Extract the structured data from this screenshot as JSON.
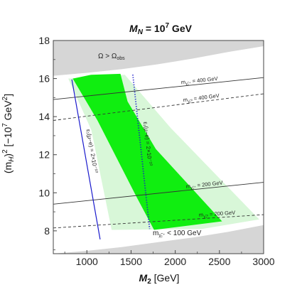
{
  "chart_data": {
    "type": "area",
    "title_main": "M",
    "title_sub": "N",
    "title_rest": " = 10",
    "title_exp": "7",
    "title_unit": " GeV",
    "xlabel_main": "M",
    "xlabel_sub": "2",
    "xlabel_rest": " [GeV]",
    "ylabel": "(m_H)^2 [-10^7 GeV^2]",
    "ylabel_parts": {
      "a": "(m",
      "b": "H",
      "c": ")",
      "d": "2",
      "e": " [−10",
      "f": "7",
      "g": " GeV",
      "h": "2",
      "i": "]"
    },
    "xlim": [
      620,
      3000
    ],
    "ylim": [
      6.8,
      18
    ],
    "x_ticks": [
      1000,
      1500,
      2000,
      2500,
      3000
    ],
    "x_tick_labels": [
      "1000",
      "1500",
      "2000",
      "2500",
      "3000"
    ],
    "y_ticks": [
      8,
      10,
      12,
      14,
      16,
      18
    ],
    "y_tick_labels": [
      "8",
      "10",
      "12",
      "14",
      "16",
      "18"
    ],
    "grid": false,
    "colors": {
      "excluded": "#d6d6d6",
      "band_light": "#d8f7d8",
      "band_dark": "#10ee10",
      "epsilon_line": "#1a1acc",
      "mass_line": "#333333"
    },
    "regions": {
      "top_excluded": [
        [
          620,
          18
        ],
        [
          3000,
          18
        ],
        [
          3000,
          17.7
        ],
        [
          2600,
          17.4
        ],
        [
          2200,
          17.05
        ],
        [
          1800,
          16.75
        ],
        [
          1400,
          16.5
        ],
        [
          1000,
          16.3
        ],
        [
          620,
          16.15
        ]
      ],
      "bottom_excluded": [
        [
          620,
          6.8
        ],
        [
          3000,
          6.8
        ],
        [
          3000,
          8.3
        ],
        [
          2600,
          7.95
        ],
        [
          2200,
          7.65
        ],
        [
          1800,
          7.4
        ],
        [
          1400,
          7.15
        ],
        [
          1000,
          6.95
        ],
        [
          620,
          6.8
        ]
      ],
      "light_band": [
        [
          790,
          16.0
        ],
        [
          1430,
          16.2
        ],
        [
          1950,
          13.4
        ],
        [
          2950,
          8.6
        ],
        [
          2300,
          8.1
        ],
        [
          1280,
          8.05
        ],
        [
          1050,
          13.3
        ]
      ],
      "dark_band": [
        [
          840,
          16.0
        ],
        [
          1050,
          16.2
        ],
        [
          1380,
          16.25
        ],
        [
          1460,
          14.8
        ],
        [
          1780,
          12.3
        ],
        [
          2530,
          8.5
        ],
        [
          1760,
          8.05
        ],
        [
          1560,
          9.8
        ],
        [
          1120,
          13.8
        ]
      ]
    },
    "mass_lines": [
      {
        "label_main": "m",
        "label_sub": "χ̃₁⁺",
        "label_value": " = 400 GeV",
        "style": "solid",
        "y_left": 14.9,
        "y_right": 16.05
      },
      {
        "label_main": "m",
        "label_sub": "χ̃₁⁰",
        "label_value": " = 400 GeV",
        "style": "dashed",
        "y_left": 13.8,
        "y_right": 15.2
      },
      {
        "label_main": "m",
        "label_sub": "χ̃₁⁺",
        "label_value": " = 200 GeV",
        "style": "solid",
        "y_left": 9.4,
        "y_right": 10.55
      },
      {
        "label_main": "m",
        "label_sub": "χ̃₁⁰",
        "label_value": " = 200 GeV",
        "style": "dashed",
        "y_left": 8.15,
        "y_right": 8.85
      }
    ],
    "epsilon_lines": [
      {
        "label": "ε₁(μ−e) = 2×10⁻¹⁰",
        "style": "solid",
        "points": [
          [
            830,
            15.95
          ],
          [
            1150,
            7.55
          ]
        ]
      },
      {
        "label": "ε₁(μ−e) = 2×10⁻¹⁰",
        "style": "dotted",
        "points": [
          [
            1520,
            16.2
          ],
          [
            1710,
            8.1
          ]
        ]
      }
    ],
    "annotations": {
      "omega": "Ω > Ω",
      "omega_sub": "obs",
      "low_mass_main": "m",
      "low_mass_sub": "χ̃₁⁺",
      "low_mass_value": " < 100 GeV"
    }
  }
}
